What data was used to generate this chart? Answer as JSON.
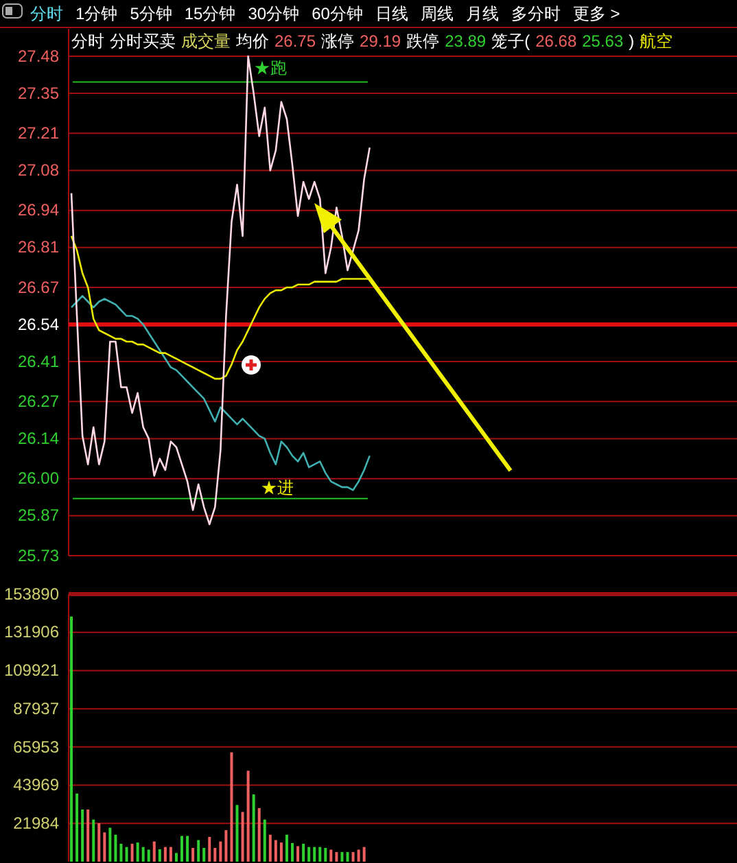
{
  "chart_data": [
    {
      "type": "line",
      "ylim": [
        25.73,
        27.48
      ],
      "yticks": [
        25.73,
        25.87,
        {
          "value": 26,
          "label": "26.00"
        },
        26.14,
        26.27,
        26.41,
        26.54,
        26.67,
        26.81,
        26.94,
        27.08,
        27.21,
        27.35,
        27.48
      ],
      "tick_labels": "y",
      "grid": "y",
      "marker": "none",
      "categories": [
        null,
        null,
        null,
        null,
        null,
        null,
        null,
        null,
        null,
        null,
        null,
        null,
        null,
        null,
        null,
        null,
        null,
        null,
        null,
        null,
        null,
        null,
        null,
        null,
        null,
        null,
        null,
        null,
        null,
        null,
        null,
        null,
        null,
        null,
        null,
        null,
        null,
        null,
        null,
        null,
        null,
        null,
        null,
        null,
        null,
        null,
        null,
        null,
        null,
        null,
        null,
        null,
        null,
        null,
        null,
        null,
        null,
        null,
        null,
        null,
        null,
        null,
        null,
        null,
        null,
        null,
        null,
        null,
        null,
        null,
        null,
        null,
        null,
        null,
        null,
        null,
        null,
        null,
        null,
        null,
        null,
        null,
        null,
        null,
        null,
        null,
        null,
        null,
        null,
        null,
        null,
        null,
        null,
        null,
        null,
        null,
        null,
        null,
        null,
        null,
        null,
        null,
        null,
        null,
        null,
        null,
        null,
        null,
        null,
        null,
        null,
        null,
        null,
        null,
        null,
        null,
        null,
        null,
        null,
        null,
        null
      ],
      "annotations": [
        "分时",
        "1分钟",
        "5分钟",
        "15分钟",
        "30分钟",
        "60分钟",
        "日线",
        "周线",
        "月线",
        "多分时",
        "更多 >",
        "分时",
        "分时买卖",
        "成交量",
        "均价",
        "26.75",
        "涨停",
        "29.19",
        "跌停",
        "23.89",
        "笼子(",
        "26.68",
        "25.63",
        ")",
        "航空"
      ],
      "ref_lines": [
        {
          "axis": "y",
          "value": 26.54,
          "color": "#e01010"
        },
        {
          "axis": "y",
          "value": 27.39,
          "label": "★跑",
          "color": "#20c020"
        },
        {
          "axis": "y",
          "value": 25.93,
          "label": "★进",
          "color": "#20c020"
        }
      ],
      "series": [
        {
          "color": "#40b0b0",
          "values": [
            26.6,
            26.62,
            26.64,
            26.62,
            26.6,
            26.62,
            26.63,
            26.62,
            26.61,
            26.59,
            26.57,
            26.57,
            26.56,
            26.54,
            26.51,
            26.48,
            26.45,
            26.42,
            26.39,
            26.38,
            26.36,
            26.34,
            26.32,
            26.3,
            26.28,
            26.24,
            26.2,
            26.25,
            26.23,
            26.21,
            26.19,
            26.21,
            26.19,
            26.17,
            26.15,
            26.14,
            26.09,
            26.05,
            26.13,
            26.11,
            26.08,
            26.06,
            26.09,
            26.04,
            26.05,
            26.06,
            26.02,
            25.99,
            25.98,
            25.97,
            25.97,
            25.96,
            25.99,
            26.03,
            26.08,
            null,
            null,
            null,
            null,
            null,
            null,
            null,
            null,
            null,
            null,
            null,
            null,
            null,
            null,
            null,
            null,
            null,
            null,
            null,
            null,
            null,
            null,
            null,
            null,
            null,
            null,
            null,
            null,
            null,
            null,
            null,
            null,
            null,
            null,
            null,
            null,
            null,
            null,
            null,
            null,
            null,
            null,
            null,
            null,
            null,
            null,
            null,
            null,
            null,
            null,
            null,
            null,
            null,
            null,
            null,
            null,
            null,
            null,
            null,
            null,
            null,
            null,
            null,
            null,
            null,
            null
          ]
        },
        {
          "color": "#e8e800",
          "values": [
            26.85,
            26.8,
            26.72,
            26.67,
            26.56,
            26.52,
            26.51,
            26.5,
            26.49,
            26.49,
            26.48,
            26.48,
            26.47,
            26.47,
            26.46,
            26.45,
            26.44,
            26.44,
            26.43,
            26.42,
            26.41,
            26.4,
            26.39,
            26.38,
            26.37,
            26.36,
            26.35,
            26.35,
            26.36,
            26.4,
            26.45,
            26.48,
            26.52,
            26.56,
            26.6,
            26.63,
            26.65,
            26.66,
            26.66,
            26.67,
            26.67,
            26.68,
            26.68,
            26.68,
            26.69,
            26.69,
            26.69,
            26.69,
            26.69,
            26.7,
            26.7,
            26.7,
            26.7,
            26.7,
            26.7,
            null,
            null,
            null,
            null,
            null,
            null,
            null,
            null,
            null,
            null,
            null,
            null,
            null,
            null,
            null,
            null,
            null,
            null,
            null,
            null,
            null,
            null,
            null,
            null,
            null,
            null,
            null,
            null,
            null,
            null,
            null,
            null,
            null,
            null,
            null,
            null,
            null,
            null,
            null,
            null,
            null,
            null,
            null,
            null,
            null,
            null,
            null,
            null,
            null,
            null,
            null,
            null,
            null,
            null,
            null,
            null,
            null,
            null,
            null,
            null,
            null,
            null,
            null,
            null,
            null,
            null
          ]
        },
        {
          "color": "#ffd8e4",
          "values": [
            27.0,
            26.57,
            26.15,
            26.05,
            26.18,
            26.05,
            26.13,
            26.48,
            26.48,
            26.32,
            26.32,
            26.23,
            26.3,
            26.18,
            26.14,
            26.01,
            26.07,
            26.03,
            26.13,
            26.11,
            26.05,
            25.99,
            25.89,
            25.98,
            25.9,
            25.84,
            25.9,
            26.1,
            26.57,
            26.9,
            27.03,
            26.85,
            27.48,
            27.35,
            27.2,
            27.3,
            27.08,
            27.15,
            27.32,
            27.26,
            27.1,
            26.92,
            27.04,
            26.98,
            27.04,
            26.98,
            26.72,
            26.81,
            26.95,
            26.85,
            26.73,
            26.8,
            26.87,
            27.05,
            27.16,
            null,
            null,
            null,
            null,
            null,
            null,
            null,
            null,
            null,
            null,
            null,
            null,
            null,
            null,
            null,
            null,
            null,
            null,
            null,
            null,
            null,
            null,
            null,
            null,
            null,
            null,
            null,
            null,
            null,
            null,
            null,
            null,
            null,
            null,
            null,
            null,
            null,
            null,
            null,
            null,
            null,
            null,
            null,
            null,
            null,
            null,
            null,
            null,
            null,
            null,
            null,
            null,
            null,
            null,
            null,
            null,
            null,
            null,
            null,
            null,
            null,
            null,
            null,
            null,
            null,
            null
          ]
        }
      ]
    },
    {
      "type": "bar",
      "ylim": [
        0,
        153890
      ],
      "yticks": [
        21984,
        43969,
        65953,
        87937,
        109921,
        131906,
        153890
      ],
      "tick_labels": "y",
      "grid": "y",
      "categories": [
        null,
        null,
        null,
        null,
        null,
        null,
        null,
        null,
        null,
        null,
        null,
        null,
        null,
        null,
        null,
        null,
        null,
        null,
        null,
        null,
        null,
        null,
        null,
        null,
        null,
        null,
        null,
        null,
        null,
        null,
        null,
        null,
        null,
        null,
        null,
        null,
        null,
        null,
        null,
        null,
        null,
        null,
        null,
        null,
        null,
        null,
        null,
        null,
        null,
        null,
        null,
        null,
        null,
        null,
        null,
        null,
        null,
        null,
        null,
        null,
        null,
        null,
        null,
        null,
        null,
        null,
        null,
        null,
        null,
        null,
        null,
        null,
        null,
        null,
        null,
        null,
        null,
        null,
        null,
        null,
        null,
        null,
        null,
        null,
        null,
        null,
        null,
        null,
        null,
        null,
        null,
        null,
        null,
        null,
        null,
        null,
        null,
        null,
        null,
        null,
        null,
        null,
        null,
        null,
        null,
        null,
        null,
        null,
        null,
        null,
        null,
        null,
        null,
        null,
        null,
        null,
        null,
        null,
        null,
        null,
        null
      ],
      "values": [
        141000,
        39200,
        30000,
        30000,
        24200,
        22100,
        16800,
        19500,
        15500,
        10300,
        8400,
        10300,
        11000,
        8400,
        6900,
        11600,
        7100,
        8400,
        8400,
        5000,
        14800,
        14800,
        7900,
        12400,
        7900,
        14200,
        7900,
        11600,
        18100,
        62900,
        32600,
        28600,
        52300,
        38700,
        30800,
        24200,
        15500,
        12400,
        11000,
        15500,
        10700,
        8900,
        10300,
        8400,
        8400,
        8400,
        7900,
        6900,
        5500,
        5500,
        5500,
        5500,
        6900,
        8400,
        null,
        null,
        null,
        null,
        null,
        null,
        null,
        null,
        null,
        null,
        null,
        null,
        null,
        null,
        null,
        null,
        null,
        null,
        null,
        null,
        null,
        null,
        null,
        null,
        null,
        null,
        null,
        null,
        null,
        null,
        null,
        null,
        null,
        null,
        null,
        null,
        null,
        null,
        null,
        null,
        null,
        null,
        null,
        null,
        null,
        null,
        null,
        null,
        null,
        null,
        null,
        null,
        null,
        null,
        null,
        null,
        null,
        null,
        null,
        null,
        null,
        null,
        null,
        null,
        null,
        null,
        null
      ],
      "colors": [
        "#30d030",
        "#30d030",
        "#30d030",
        "#f06060",
        "#30d030",
        "#f06060",
        "#f06060",
        "#30d030",
        "#30d030",
        "#30d030",
        "#30d030",
        "#f06060",
        "#30d030",
        "#30d030",
        "#30d030",
        "#f06060",
        "#30d030",
        "#f06060",
        "#f06060",
        "#30d030",
        "#30d030",
        "#30d030",
        "#f06060",
        "#30d030",
        "#30d030",
        "#f06060",
        "#f06060",
        "#f06060",
        "#f06060",
        "#f06060",
        "#30d030",
        "#f06060",
        "#f06060",
        "#30d030",
        "#f06060",
        "#30d030",
        "#f06060",
        "#f06060",
        "#f06060",
        "#30d030",
        "#30d030",
        "#f06060",
        "#30d030",
        "#30d030",
        "#30d030",
        "#30d030",
        "#30d030",
        "#f06060",
        "#f06060",
        "#30d030",
        "#30d030",
        "#f06060",
        "#f06060",
        "#f06060",
        null,
        null,
        null,
        null,
        null,
        null,
        null,
        null,
        null,
        null,
        null,
        null,
        null,
        null,
        null,
        null,
        null,
        null,
        null,
        null,
        null,
        null,
        null,
        null,
        null,
        null,
        null,
        null,
        null,
        null,
        null,
        null,
        null,
        null,
        null,
        null,
        null,
        null,
        null,
        null,
        null,
        null,
        null,
        null,
        null,
        null,
        null,
        null,
        null,
        null,
        null,
        null,
        null,
        null,
        null,
        null,
        null,
        null,
        null,
        null,
        null,
        null,
        null,
        null,
        null,
        null,
        null
      ]
    }
  ]
}
